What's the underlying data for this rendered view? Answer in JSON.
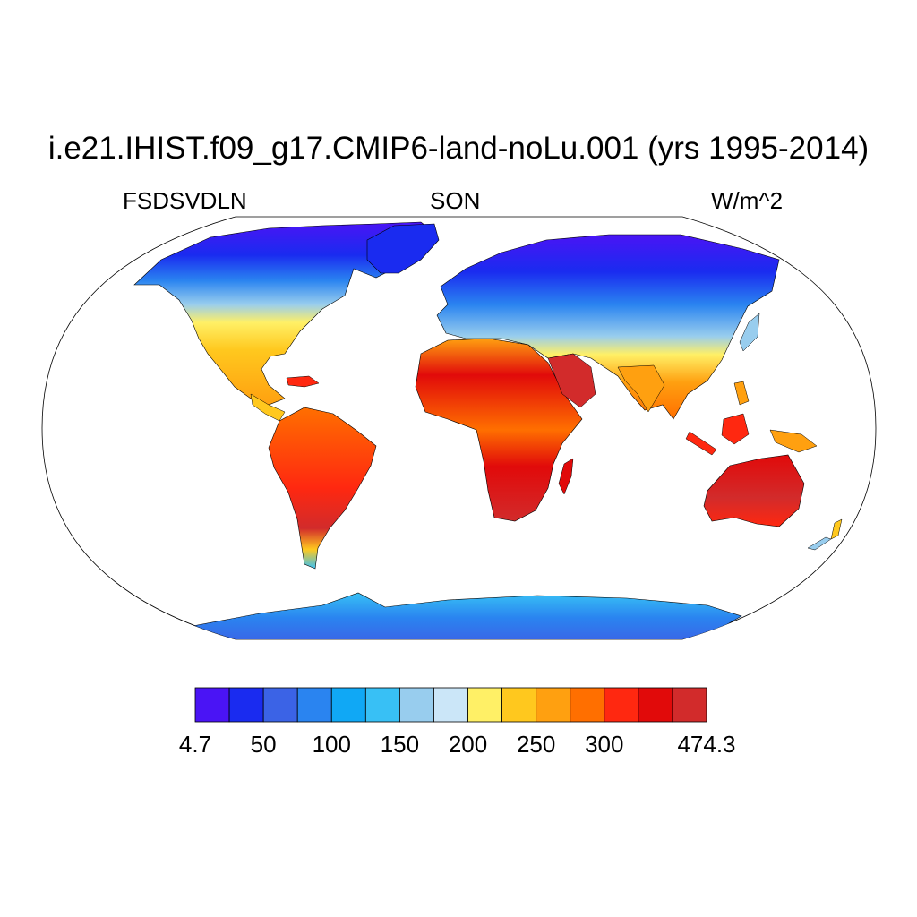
{
  "title": "i.e21.IHIST.f09_g17.CMIP6-land-noLu.001 (yrs 1995-2014)",
  "subtitle_left": "FSDSVDLN",
  "subtitle_center": "SON",
  "subtitle_right": "W/m^2",
  "colorbar": {
    "colors": [
      "#4a14f5",
      "#1a2bf0",
      "#3b63e6",
      "#2a84f0",
      "#10a8f5",
      "#38c0f5",
      "#98cdee",
      "#cbe6f8",
      "#fff066",
      "#ffc81e",
      "#ffa010",
      "#ff6f00",
      "#ff2810",
      "#e10a0a",
      "#d22b2b"
    ],
    "labels": [
      "4.7",
      "50",
      "100",
      "150",
      "200",
      "250",
      "300",
      "474.3"
    ]
  },
  "map": {
    "projection": "Robinson",
    "ocean_color": "#ffffff",
    "regions": [
      {
        "name": "North America",
        "category": "high-latitude low values to subtropical high values"
      },
      {
        "name": "South America",
        "category": "high values"
      },
      {
        "name": "Africa",
        "category": "highest values"
      },
      {
        "name": "Eurasia",
        "category": "low north to high south"
      },
      {
        "name": "Australia",
        "category": "high values"
      },
      {
        "name": "Antarctica",
        "category": "low values"
      }
    ]
  }
}
